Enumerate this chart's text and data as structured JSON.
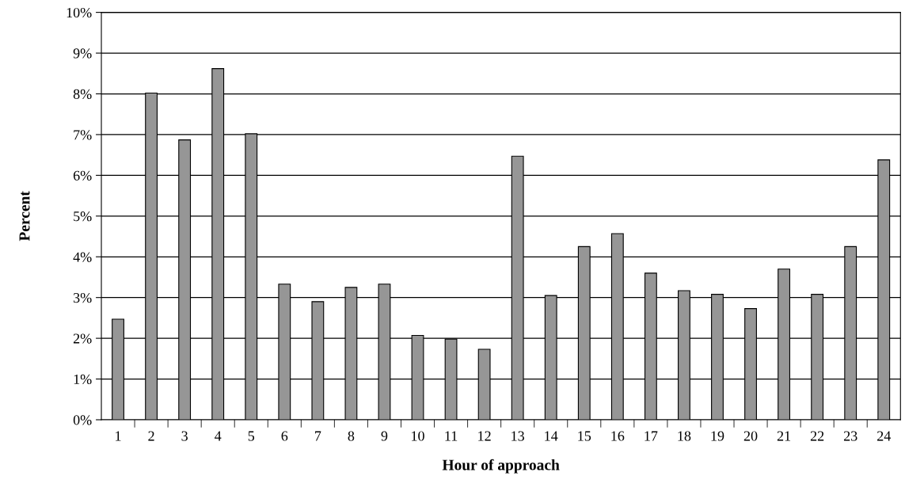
{
  "chart_data": {
    "type": "bar",
    "xlabel": "Hour of approach",
    "ylabel": "Percent",
    "categories": [
      "1",
      "2",
      "3",
      "4",
      "5",
      "6",
      "7",
      "8",
      "9",
      "10",
      "11",
      "12",
      "13",
      "14",
      "15",
      "16",
      "17",
      "18",
      "19",
      "20",
      "21",
      "22",
      "23",
      "24"
    ],
    "values": [
      2.47,
      8.02,
      6.87,
      8.62,
      7.02,
      3.33,
      2.9,
      3.25,
      3.33,
      2.07,
      1.98,
      1.73,
      6.47,
      3.05,
      4.25,
      4.57,
      3.6,
      3.17,
      3.08,
      2.73,
      3.7,
      3.08,
      4.25,
      6.38
    ],
    "color": "#969696",
    "ylim": [
      0,
      10
    ],
    "yticks": [
      {
        "value": 0,
        "label": "0%"
      },
      {
        "value": 1,
        "label": "1%"
      },
      {
        "value": 2,
        "label": "2%"
      },
      {
        "value": 3,
        "label": "3%"
      },
      {
        "value": 4,
        "label": "4%"
      },
      {
        "value": 5,
        "label": "5%"
      },
      {
        "value": 6,
        "label": "6%"
      },
      {
        "value": 7,
        "label": "7%"
      },
      {
        "value": 8,
        "label": "8%"
      },
      {
        "value": 9,
        "label": "9%"
      },
      {
        "value": 10,
        "label": "10%"
      }
    ],
    "grid": "y",
    "legend": false
  }
}
